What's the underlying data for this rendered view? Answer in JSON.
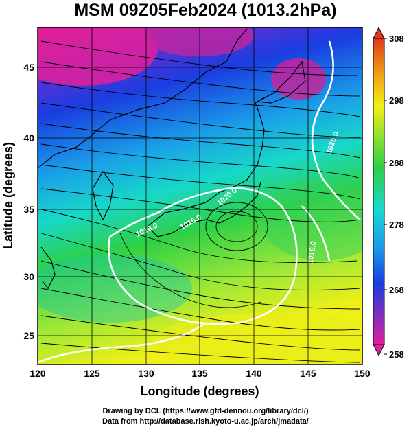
{
  "title": "MSM 09Z05Feb2024 (1013.2hPa)",
  "axes": {
    "xlabel": "Longitude (degrees)",
    "ylabel": "Latitude  (degrees)",
    "xticks": [
      "120",
      "125",
      "130",
      "135",
      "140",
      "145",
      "150"
    ],
    "yticks": [
      "25",
      "30",
      "35",
      "40",
      "45"
    ],
    "xlim": [
      120,
      150
    ],
    "ylim": [
      22.4,
      47.6
    ]
  },
  "colorbar": {
    "ticks": [
      "308",
      "298",
      "288",
      "278",
      "268",
      "258"
    ],
    "range": [
      258,
      308
    ]
  },
  "contour_labels": [
    "1016.0",
    "1016.0",
    "1020.0",
    "1016.0",
    "1020.0"
  ],
  "credits": {
    "line1": "Drawing by DCL (https://www.gfd-dennou.org/library/dcl/)",
    "line2": "Data from http://database.rish.kyoto-u.ac.jp/arch/jmadata/"
  },
  "colors": {
    "cold": "#e0209a",
    "cool": "#1a3de0",
    "mid": "#18d8d2",
    "warm": "#2ed045",
    "hot": "#f2f016"
  }
}
